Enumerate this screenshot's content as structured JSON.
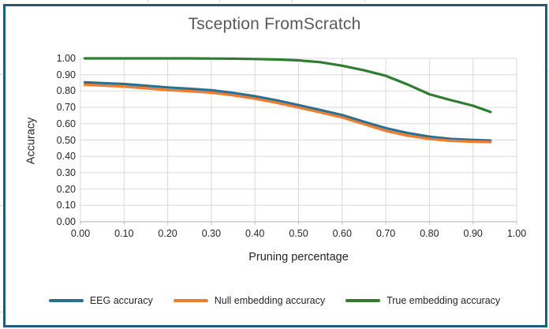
{
  "chart_data": {
    "type": "line",
    "title": "Tsception FromScratch",
    "xlabel": "Pruning percentage",
    "ylabel": "Accuracy",
    "xlim": [
      0,
      1
    ],
    "ylim": [
      0,
      1
    ],
    "grid": true,
    "legend_position": "bottom",
    "x_tick_labels": [
      "0.00",
      "0.10",
      "0.20",
      "0.30",
      "0.40",
      "0.50",
      "0.60",
      "0.70",
      "0.80",
      "0.90",
      "1.00"
    ],
    "y_tick_labels": [
      "0.00",
      "0.10",
      "0.20",
      "0.30",
      "0.40",
      "0.50",
      "0.60",
      "0.70",
      "0.80",
      "0.90",
      "1.00"
    ],
    "x": [
      0.01,
      0.05,
      0.1,
      0.15,
      0.2,
      0.25,
      0.3,
      0.35,
      0.4,
      0.45,
      0.5,
      0.55,
      0.6,
      0.65,
      0.7,
      0.75,
      0.8,
      0.85,
      0.9,
      0.94
    ],
    "series": [
      {
        "name": "EEG accuracy",
        "color": "#2E6F8E",
        "values": [
          0.853,
          0.849,
          0.843,
          0.833,
          0.822,
          0.814,
          0.805,
          0.789,
          0.768,
          0.743,
          0.714,
          0.684,
          0.653,
          0.612,
          0.573,
          0.543,
          0.521,
          0.507,
          0.501,
          0.497
        ]
      },
      {
        "name": "Null embedding accuracy",
        "color": "#ED7D31",
        "values": [
          0.838,
          0.834,
          0.827,
          0.817,
          0.806,
          0.799,
          0.79,
          0.774,
          0.753,
          0.728,
          0.699,
          0.669,
          0.638,
          0.597,
          0.556,
          0.527,
          0.507,
          0.495,
          0.49,
          0.488
        ]
      },
      {
        "name": "True embedding accuracy",
        "color": "#2E7D32",
        "values": [
          1.0,
          1.0,
          1.0,
          1.0,
          1.0,
          1.0,
          0.999,
          0.998,
          0.996,
          0.993,
          0.988,
          0.977,
          0.955,
          0.927,
          0.893,
          0.84,
          0.78,
          0.744,
          0.71,
          0.672
        ]
      }
    ]
  },
  "frame": {
    "border_color": "#1F5C7C",
    "background": "#FFFFFF"
  },
  "styles": {
    "gridline_color": "#D9D9D9",
    "axis_color": "#BFBFBF",
    "title_color": "#595959",
    "label_color": "#262626"
  }
}
